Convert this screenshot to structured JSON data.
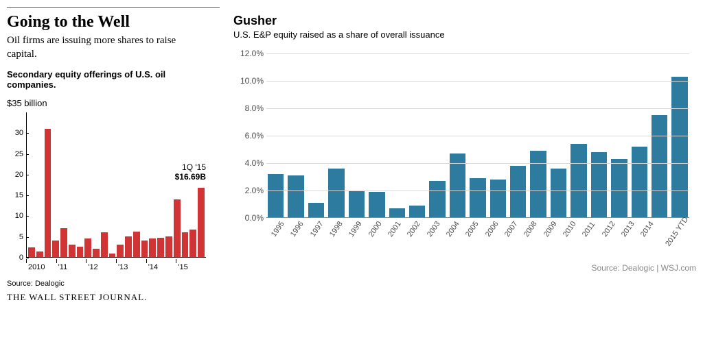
{
  "left": {
    "headline": "Going to the Well",
    "subhead": "Oil firms are issuing more shares to raise capital.",
    "chart_title": "Secondary equity offerings of U.S. oil companies.",
    "top_axis_label": "$35 billion",
    "source": "Source: Dealogic",
    "brand": "THE WALL STREET JOURNAL.",
    "chart": {
      "type": "bar",
      "bar_color": "#d13434",
      "background_color": "#ffffff",
      "ymax": 35,
      "ytick_step": 5,
      "yticks": [
        0,
        5,
        10,
        15,
        20,
        25,
        30
      ],
      "xgroups": [
        "2010",
        "'11",
        "'12",
        "'13",
        "'14",
        "'15"
      ],
      "bars_per_group": 4,
      "tick_fontsize": 11,
      "values": [
        2.3,
        1.3,
        31.0,
        4.0,
        7.0,
        3.0,
        2.5,
        4.5,
        2.0,
        6.0,
        0.8,
        3.0,
        5.0,
        6.2,
        4.0,
        4.5,
        4.7,
        5.0,
        14.0,
        6.0,
        6.7,
        16.69
      ],
      "annotation": {
        "label": "1Q '15",
        "value": "$16.69B",
        "target_index": 21
      }
    }
  },
  "right": {
    "title": "Gusher",
    "subtitle": "U.S. E&P equity raised as a share of overall issuance",
    "source": "Source: Dealogic  |  WSJ.com",
    "chart": {
      "type": "bar",
      "bar_color": "#2d7ca0",
      "grid_color": "#d9d9d9",
      "background_color": "#ffffff",
      "ymax": 12.0,
      "ytick_step": 2.0,
      "yticks": [
        "0.0%",
        "2.0%",
        "4.0%",
        "6.0%",
        "8.0%",
        "10.0%",
        "12.0%"
      ],
      "tick_fontsize": 12,
      "categories": [
        "1995",
        "1996",
        "1997",
        "1998",
        "1999",
        "2000",
        "2001",
        "2002",
        "2003",
        "2004",
        "2005",
        "2006",
        "2007",
        "2008",
        "2009",
        "2010",
        "2011",
        "2012",
        "2013",
        "2014",
        "2015 YTD"
      ],
      "values": [
        3.2,
        3.1,
        1.1,
        3.6,
        2.0,
        1.9,
        0.7,
        0.9,
        2.7,
        4.7,
        2.9,
        2.8,
        3.8,
        4.9,
        3.6,
        5.4,
        4.8,
        4.3,
        5.2,
        7.5,
        10.3
      ]
    }
  }
}
